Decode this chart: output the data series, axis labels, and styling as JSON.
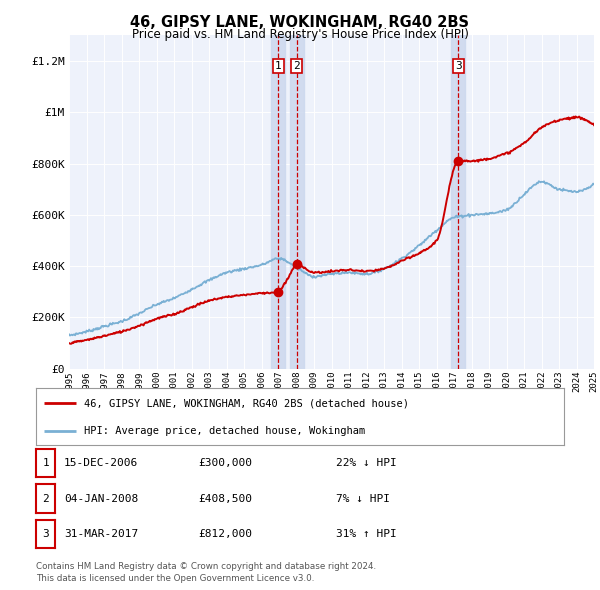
{
  "title": "46, GIPSY LANE, WOKINGHAM, RG40 2BS",
  "subtitle": "Price paid vs. HM Land Registry's House Price Index (HPI)",
  "background_color": "#ffffff",
  "plot_bg_color": "#eef2fb",
  "grid_color": "#ffffff",
  "ylim": [
    0,
    1300000
  ],
  "yticks": [
    0,
    200000,
    400000,
    600000,
    800000,
    1000000,
    1200000
  ],
  "ytick_labels": [
    "£0",
    "£200K",
    "£400K",
    "£600K",
    "£800K",
    "£1M",
    "£1.2M"
  ],
  "xstart_year": 1995,
  "xend_year": 2025,
  "transactions": [
    {
      "date": 2006.96,
      "price": 300000,
      "label": "1"
    },
    {
      "date": 2008.02,
      "price": 408500,
      "label": "2"
    },
    {
      "date": 2017.25,
      "price": 812000,
      "label": "3"
    }
  ],
  "transaction_table": [
    {
      "num": "1",
      "date": "15-DEC-2006",
      "price": "£300,000",
      "hpi": "22% ↓ HPI"
    },
    {
      "num": "2",
      "date": "04-JAN-2008",
      "price": "£408,500",
      "hpi": "7% ↓ HPI"
    },
    {
      "num": "3",
      "date": "31-MAR-2017",
      "price": "£812,000",
      "hpi": "31% ↑ HPI"
    }
  ],
  "legend_line1": "46, GIPSY LANE, WOKINGHAM, RG40 2BS (detached house)",
  "legend_line2": "HPI: Average price, detached house, Wokingham",
  "footer": "Contains HM Land Registry data © Crown copyright and database right 2024.\nThis data is licensed under the Open Government Licence v3.0.",
  "red_line_color": "#cc0000",
  "blue_line_color": "#7ab0d4",
  "vline_color": "#cc0000",
  "shading_color": "#ccd8ee",
  "hpi_data": {
    "years": [
      1995,
      1996,
      1997,
      1998,
      1999,
      2000,
      2001,
      2002,
      2003,
      2004,
      2005,
      2006,
      2007,
      2008,
      2009,
      2010,
      2011,
      2012,
      2013,
      2014,
      2015,
      2016,
      2017,
      2018,
      2019,
      2020,
      2021,
      2022,
      2023,
      2024,
      2025
    ],
    "values": [
      130000,
      145000,
      165000,
      185000,
      215000,
      250000,
      275000,
      310000,
      345000,
      375000,
      390000,
      405000,
      430000,
      395000,
      360000,
      370000,
      375000,
      370000,
      390000,
      430000,
      480000,
      540000,
      590000,
      600000,
      605000,
      620000,
      680000,
      730000,
      700000,
      690000,
      720000
    ]
  },
  "prop_data": {
    "years": [
      1995,
      1996,
      1997,
      1998,
      1999,
      2000,
      2001,
      2002,
      2003,
      2004,
      2005,
      2006,
      2006.96,
      2007,
      2007.5,
      2008.02,
      2009,
      2010,
      2011,
      2012,
      2013,
      2014,
      2015,
      2016,
      2017.25,
      2018,
      2019,
      2020,
      2021,
      2022,
      2023,
      2024,
      2025
    ],
    "values": [
      100000,
      112000,
      128000,
      145000,
      168000,
      195000,
      213000,
      240000,
      265000,
      280000,
      288000,
      295000,
      300000,
      302000,
      350000,
      408500,
      375000,
      380000,
      385000,
      380000,
      390000,
      420000,
      450000,
      500000,
      812000,
      810000,
      820000,
      840000,
      880000,
      940000,
      970000,
      980000,
      950000
    ]
  }
}
